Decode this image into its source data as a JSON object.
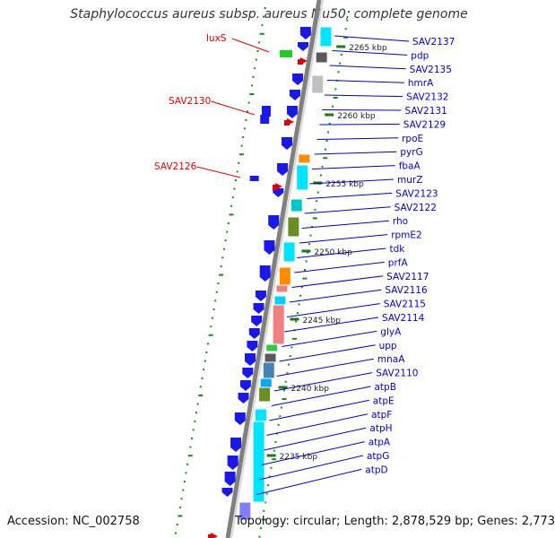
{
  "title": "Staphylococcus aureus subsp. aureus Mu50, complete genome",
  "footer": {
    "accession": "Accession: NC_002758",
    "topology": "Topology: circular; Length: 2,878,529 bp; Genes: 2,773"
  },
  "colors": {
    "backbone": "#808080",
    "blue_gene": "#1a1ae6",
    "cyan_gene": "#00e5ff",
    "label_blue": "#0000cc",
    "label_red": "#dd0000",
    "tick_green": "#1a8a1a",
    "scale_tick": "#1a7a1a"
  },
  "scale_labels": [
    "2265 kbp",
    "2260 kbp",
    "2255 kbp",
    "2250 kbp",
    "2245 kbp",
    "2240 kbp",
    "2235 kbp"
  ],
  "right_labels": [
    "SAV2137",
    "pdp",
    "SAV2135",
    "hmrA",
    "SAV2132",
    "SAV2131",
    "SAV2129",
    "rpoE",
    "pyrG",
    "fbaA",
    "murZ",
    "SAV2123",
    "SAV2122",
    "rho",
    "rpmE2",
    "tdk",
    "prfA",
    "SAV2117",
    "SAV2116",
    "SAV2115",
    "SAV2114",
    "glyA",
    "upp",
    "mnaA",
    "SAV2110",
    "atpB",
    "atpE",
    "atpF",
    "atpH",
    "atpA",
    "atpG",
    "atpD"
  ],
  "left_labels": [
    "luxS",
    "SAV2130",
    "SAV2126"
  ]
}
